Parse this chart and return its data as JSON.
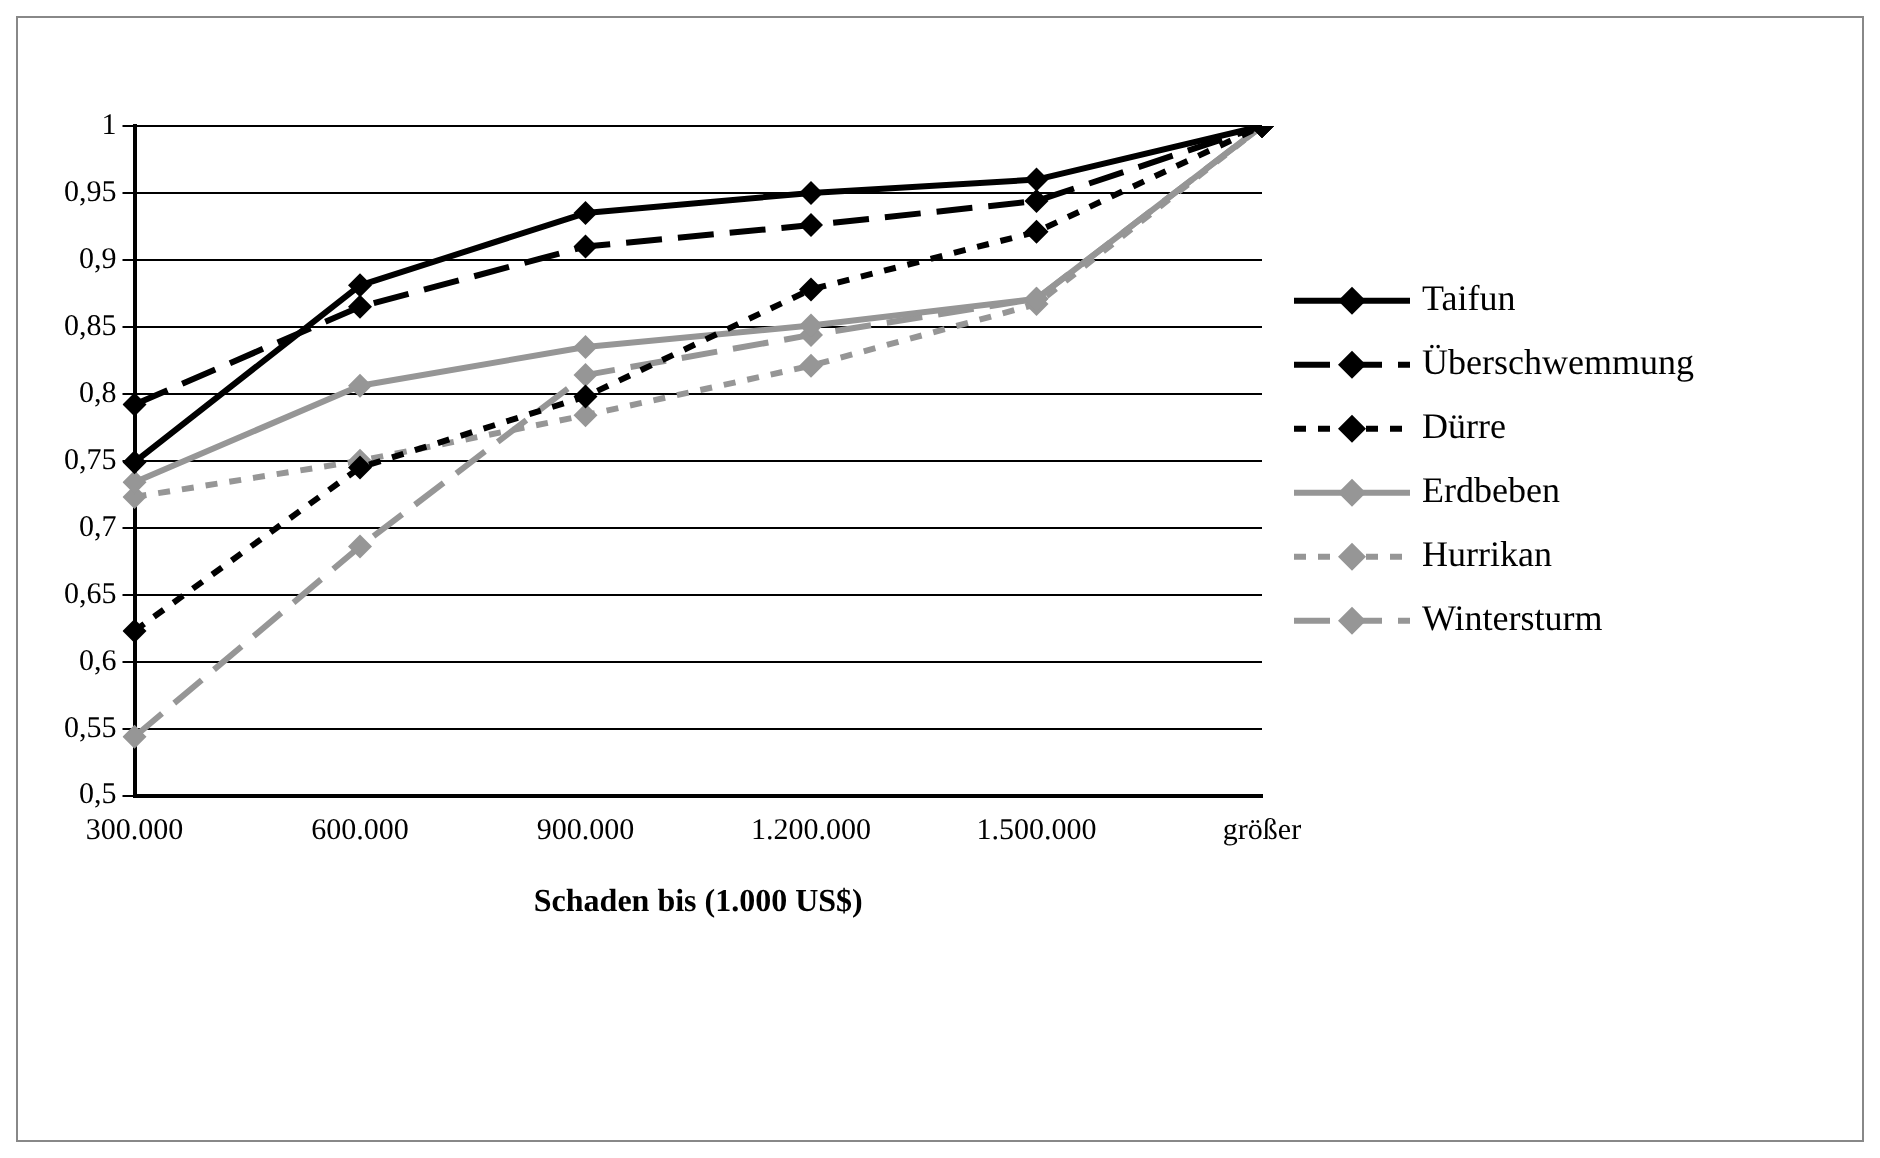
{
  "chart_data": {
    "type": "line",
    "xlabel": "Schaden bis (1.000 US$)",
    "categories": [
      "300.000",
      "600.000",
      "900.000",
      "1.200.000",
      "1.500.000",
      "größer"
    ],
    "series": [
      {
        "name": "Taifun",
        "color": "#000000",
        "line_style": "solid",
        "values": [
          0.749,
          0.881,
          0.935,
          0.95,
          0.96,
          1
        ]
      },
      {
        "name": "Überschwemmung",
        "color": "#000000",
        "line_style": "dashed",
        "values": [
          0.792,
          0.865,
          0.91,
          0.926,
          0.944,
          1
        ]
      },
      {
        "name": "Dürre",
        "color": "#000000",
        "line_style": "dotted",
        "values": [
          0.623,
          0.745,
          0.798,
          0.878,
          0.921,
          1
        ]
      },
      {
        "name": "Erdbeben",
        "color": "#969696",
        "line_style": "solid",
        "values": [
          0.734,
          0.806,
          0.835,
          0.851,
          0.871,
          1
        ]
      },
      {
        "name": "Hurrikan",
        "color": "#969696",
        "line_style": "dotted",
        "values": [
          0.723,
          0.75,
          0.784,
          0.821,
          0.867,
          1
        ]
      },
      {
        "name": "Wintersturm",
        "color": "#969696",
        "line_style": "dashed",
        "values": [
          0.544,
          0.686,
          0.814,
          0.844,
          0.871,
          1
        ]
      }
    ],
    "ylim": [
      0.5,
      1
    ],
    "yticks": [
      {
        "value": 0.5,
        "label": "0,5"
      },
      {
        "value": 0.55,
        "label": "0,55"
      },
      {
        "value": 0.6,
        "label": "0,6"
      },
      {
        "value": 0.65,
        "label": "0,65"
      },
      {
        "value": 0.7,
        "label": "0,7"
      },
      {
        "value": 0.75,
        "label": "0,75"
      },
      {
        "value": 0.8,
        "label": "0,8"
      },
      {
        "value": 0.85,
        "label": "0,85"
      },
      {
        "value": 0.9,
        "label": "0,9"
      },
      {
        "value": 0.95,
        "label": "0,95"
      },
      {
        "value": 1,
        "label": "1"
      }
    ],
    "grid": "y",
    "legend": "right",
    "marker": "diamond"
  }
}
